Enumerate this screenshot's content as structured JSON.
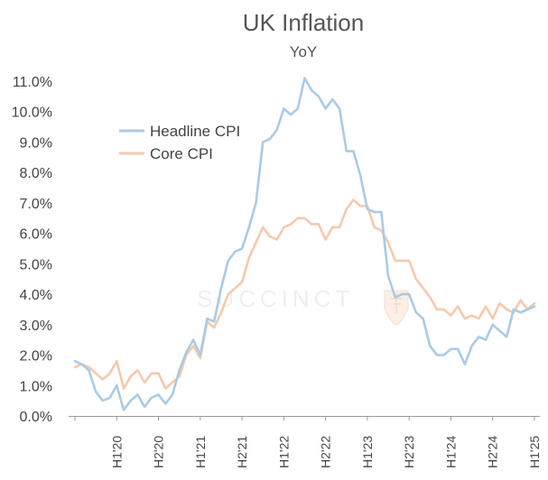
{
  "chart_data": {
    "type": "line",
    "title": "UK Inflation",
    "subtitle": "YoY",
    "xlabel": "",
    "ylabel": "",
    "ylim": [
      0,
      11
    ],
    "yticks": [
      0,
      1,
      2,
      3,
      4,
      5,
      6,
      7,
      8,
      9,
      10,
      11
    ],
    "ytick_labels": [
      "0.0%",
      "1.0%",
      "2.0%",
      "3.0%",
      "4.0%",
      "5.0%",
      "6.0%",
      "7.0%",
      "8.0%",
      "9.0%",
      "10.0%",
      "11.0%"
    ],
    "x_tick_labels": [
      "H1'20",
      "H2'20",
      "H1'21",
      "H2'21",
      "H1'22",
      "H2'22",
      "H1'23",
      "H2'23",
      "H1'24",
      "H2'24",
      "H1'25"
    ],
    "x_tick_months": [
      6,
      12,
      18,
      24,
      30,
      36,
      42,
      48,
      54,
      60,
      66
    ],
    "x_month_range": [
      0,
      66
    ],
    "legend_position": "top-left",
    "series": [
      {
        "name": "Headline CPI",
        "color": "#a9cbe6",
        "months": [
          0,
          1,
          2,
          3,
          4,
          5,
          6,
          7,
          8,
          9,
          10,
          11,
          12,
          13,
          14,
          15,
          16,
          17,
          18,
          19,
          20,
          21,
          22,
          23,
          24,
          25,
          26,
          27,
          28,
          29,
          30,
          31,
          32,
          33,
          34,
          35,
          36,
          37,
          38,
          39,
          40,
          41,
          42,
          43,
          44,
          45,
          46,
          47,
          48,
          49,
          50,
          51,
          52,
          53,
          54,
          55,
          56,
          57,
          58,
          59,
          60,
          61,
          62,
          63,
          64,
          65,
          66
        ],
        "values": [
          1.8,
          1.7,
          1.5,
          0.8,
          0.5,
          0.6,
          1.0,
          0.2,
          0.5,
          0.7,
          0.3,
          0.6,
          0.7,
          0.4,
          0.7,
          1.5,
          2.1,
          2.5,
          2.0,
          3.2,
          3.1,
          4.2,
          5.1,
          5.4,
          5.5,
          6.2,
          7.0,
          9.0,
          9.1,
          9.4,
          10.1,
          9.9,
          10.1,
          11.1,
          10.7,
          10.5,
          10.1,
          10.4,
          10.1,
          8.7,
          8.7,
          7.9,
          6.8,
          6.7,
          6.7,
          4.6,
          3.9,
          4.0,
          4.0,
          3.4,
          3.2,
          2.3,
          2.0,
          2.0,
          2.2,
          2.2,
          1.7,
          2.3,
          2.6,
          2.5,
          3.0,
          2.8,
          2.6,
          3.5,
          3.4,
          3.5,
          3.6
        ]
      },
      {
        "name": "Core CPI",
        "color": "#f5c9ad",
        "months": [
          0,
          1,
          2,
          3,
          4,
          5,
          6,
          7,
          8,
          9,
          10,
          11,
          12,
          13,
          14,
          15,
          16,
          17,
          18,
          19,
          20,
          21,
          22,
          23,
          24,
          25,
          26,
          27,
          28,
          29,
          30,
          31,
          32,
          33,
          34,
          35,
          36,
          37,
          38,
          39,
          40,
          41,
          42,
          43,
          44,
          45,
          46,
          47,
          48,
          49,
          50,
          51,
          52,
          53,
          54,
          55,
          56,
          57,
          58,
          59,
          60,
          61,
          62,
          63,
          64,
          65,
          66
        ],
        "values": [
          1.6,
          1.7,
          1.6,
          1.4,
          1.2,
          1.4,
          1.8,
          0.9,
          1.3,
          1.5,
          1.1,
          1.4,
          1.4,
          0.9,
          1.1,
          1.3,
          2.0,
          2.3,
          1.9,
          3.1,
          2.9,
          3.4,
          4.0,
          4.2,
          4.4,
          5.2,
          5.7,
          6.2,
          5.9,
          5.8,
          6.2,
          6.3,
          6.5,
          6.5,
          6.3,
          6.3,
          5.8,
          6.2,
          6.2,
          6.8,
          7.1,
          6.9,
          6.9,
          6.2,
          6.1,
          5.7,
          5.1,
          5.1,
          5.1,
          4.5,
          4.2,
          3.9,
          3.5,
          3.5,
          3.3,
          3.6,
          3.2,
          3.3,
          3.2,
          3.6,
          3.2,
          3.7,
          3.5,
          3.4,
          3.8,
          3.5,
          3.7
        ]
      }
    ]
  },
  "watermark": {
    "text": "SUCCINCT"
  }
}
